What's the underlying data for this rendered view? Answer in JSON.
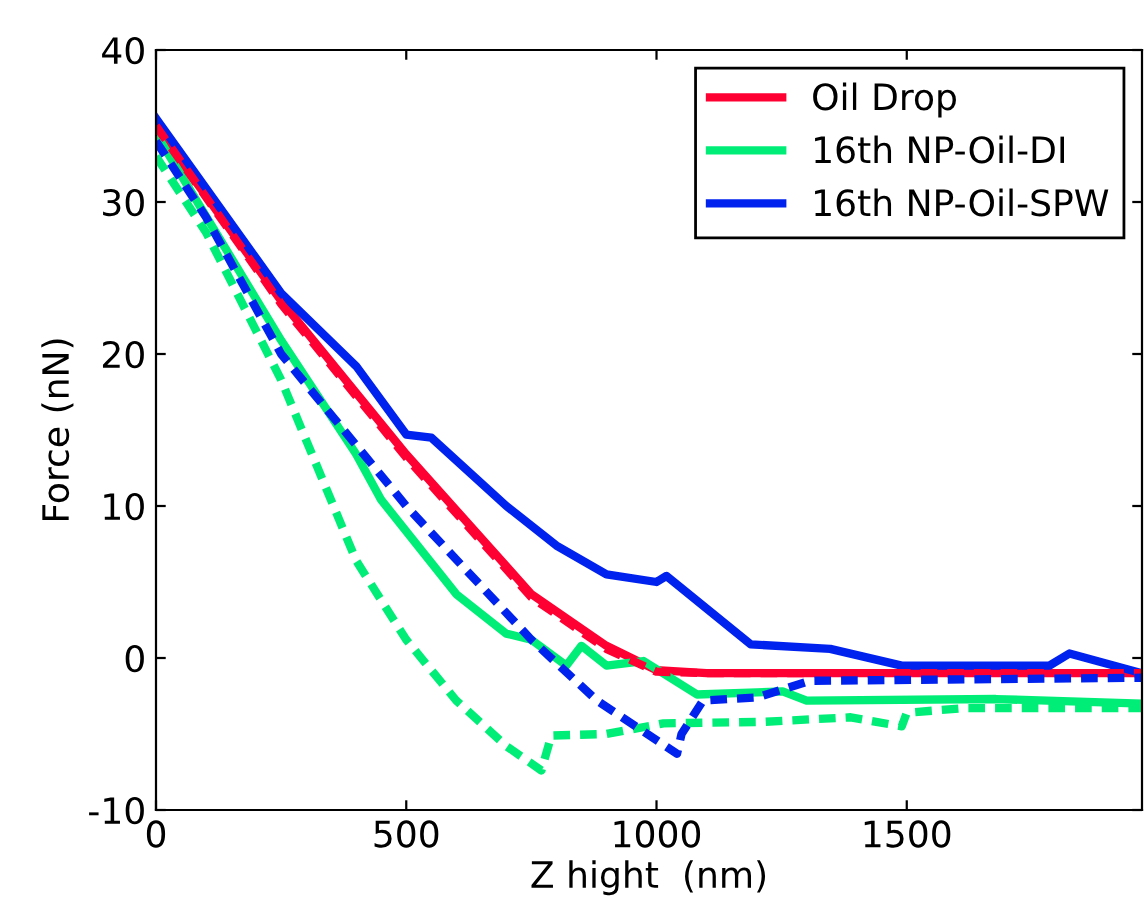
{
  "chart_data": {
    "type": "line",
    "xlabel": "Z hight  (nm)",
    "ylabel": "Force (nN)",
    "xlim": [
      0,
      1970
    ],
    "ylim": [
      -10,
      40
    ],
    "xticks": [
      0,
      500,
      1000,
      1500
    ],
    "yticks": [
      -10,
      0,
      10,
      20,
      30,
      40
    ],
    "grid": false,
    "legend": "top right",
    "marker": "none",
    "series": [
      {
        "name": "Oil Drop",
        "color": "#ff0033",
        "line_style": "solid",
        "x": [
          0,
          250,
          500,
          750,
          900,
          1000,
          1100,
          1500,
          1970
        ],
        "values": [
          35,
          23.5,
          13.4,
          4.2,
          0.8,
          -0.8,
          -1,
          -1,
          -1
        ]
      },
      {
        "name": "16th NP-Oil-DI",
        "color": "#00ee77",
        "line_style": "solid",
        "x": [
          0,
          250,
          400,
          450,
          600,
          700,
          750,
          820,
          850,
          900,
          974,
          1081,
          1252,
          1300,
          1678,
          1970
        ],
        "values": [
          34.5,
          20.9,
          13.4,
          10.4,
          4.2,
          1.6,
          1.2,
          -0.5,
          0.8,
          -0.5,
          -0.2,
          -2.4,
          -2.2,
          -2.8,
          -2.7,
          -3
        ]
      },
      {
        "name": "16th NP-Oil-SPW",
        "color": "#0022ee",
        "line_style": "solid",
        "x": [
          0,
          250,
          400,
          500,
          550,
          700,
          800,
          900,
          1000,
          1020,
          1188,
          1347,
          1490,
          1785,
          1825,
          1970
        ],
        "values": [
          35.5,
          24,
          19.2,
          14.7,
          14.5,
          10,
          7.4,
          5.5,
          5,
          5.4,
          0.9,
          0.6,
          -0.5,
          -0.5,
          0.3,
          -1
        ]
      },
      {
        "color": "#ff0033",
        "line_style": "dashed",
        "x": [
          0,
          250,
          500,
          750,
          900,
          1000,
          1100,
          1500,
          1970
        ],
        "values": [
          35,
          23.3,
          13.2,
          4.0,
          0.6,
          -0.9,
          -1,
          -1,
          -1
        ]
      },
      {
        "color": "#00ee77",
        "line_style": "dashed",
        "x": [
          0,
          100,
          250,
          400,
          500,
          600,
          700,
          770,
          790,
          900,
          1014,
          1214,
          1388,
          1490,
          1500,
          1615,
          1970
        ],
        "values": [
          33,
          28,
          18.3,
          6.4,
          1.2,
          -2.8,
          -5.8,
          -7.4,
          -5.1,
          -5,
          -4.3,
          -4.2,
          -3.9,
          -4.5,
          -3.6,
          -3.3,
          -3.3
        ]
      },
      {
        "color": "#0022ee",
        "line_style": "dashed",
        "x": [
          0,
          100,
          250,
          500,
          750,
          881,
          1041,
          1050,
          1093,
          1200,
          1307,
          1970
        ],
        "values": [
          34,
          29,
          20,
          10,
          1.2,
          -2.8,
          -6.3,
          -5,
          -2.8,
          -2.6,
          -1.5,
          -1.3
        ]
      }
    ]
  }
}
